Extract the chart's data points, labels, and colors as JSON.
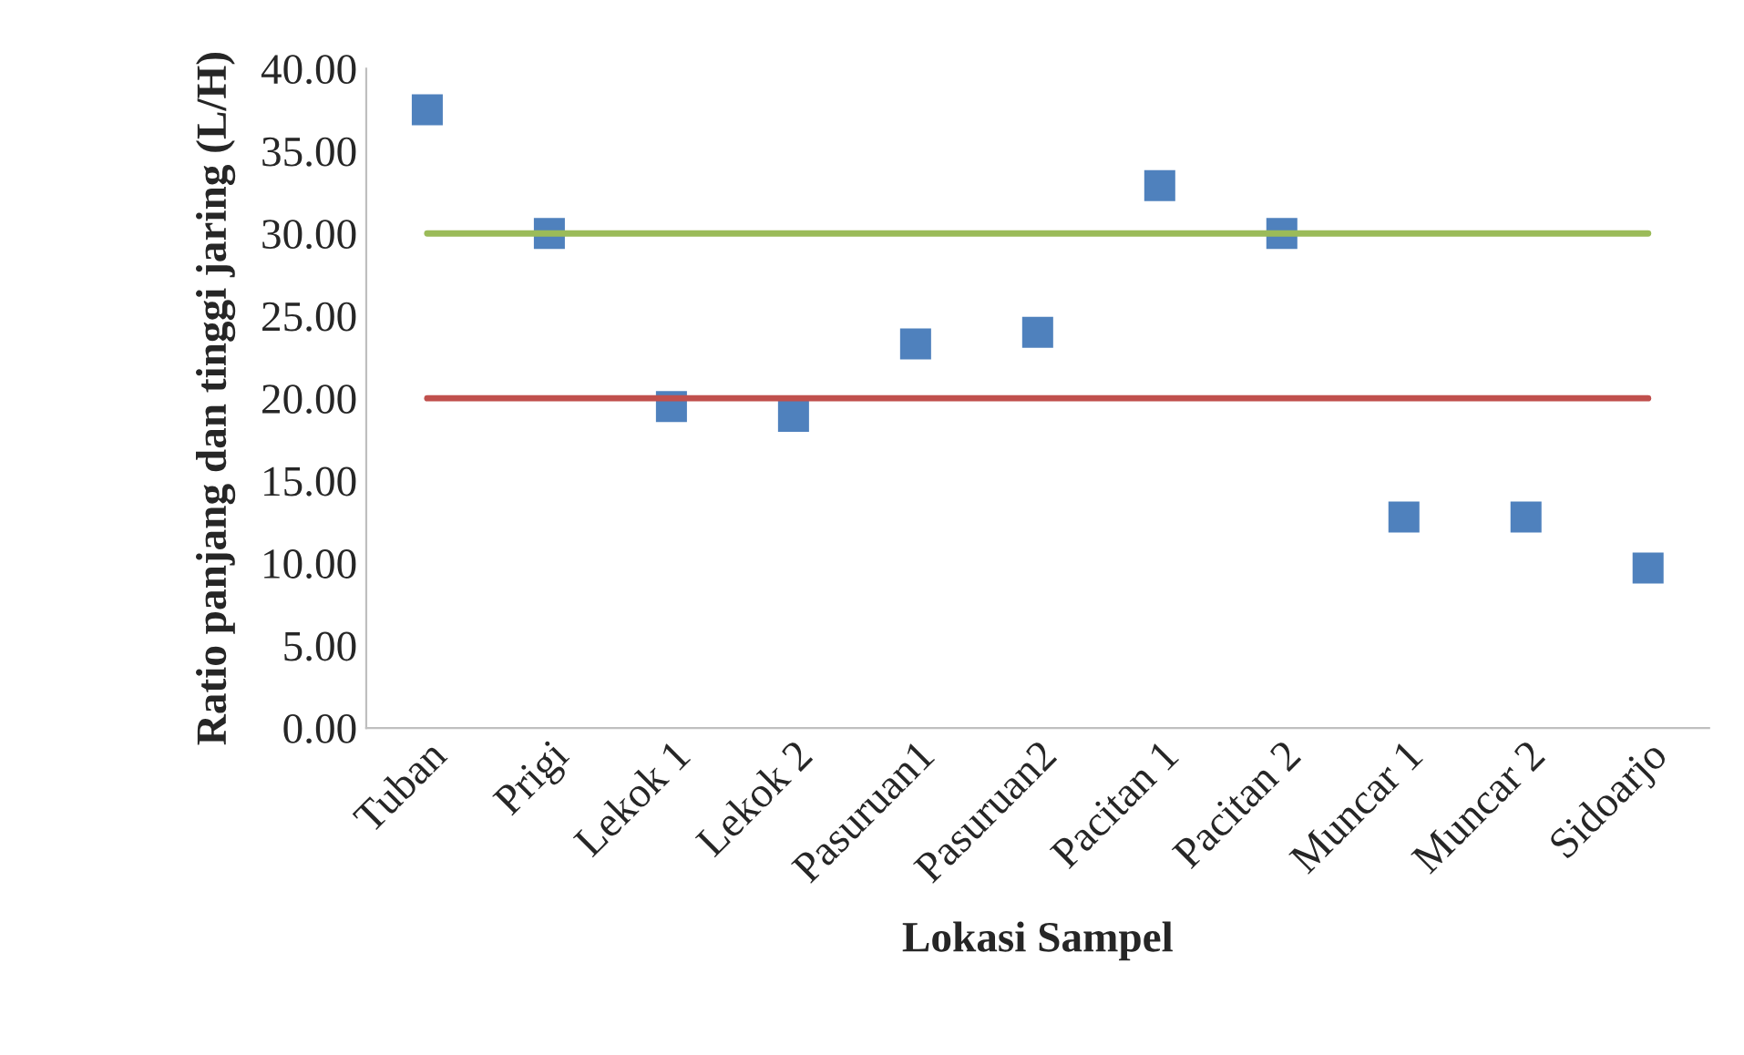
{
  "chart_data": {
    "type": "scatter",
    "xlabel": "Lokasi Sampel",
    "ylabel": "Ratio panjang dan tinggi jaring (L/H)",
    "categories": [
      "Tuban",
      "Prigi",
      "Lekok 1",
      "Lekok 2",
      "Pasuruan1",
      "Pasuruan2",
      "Pacitan 1",
      "Pacitan 2",
      "Muncar 1",
      "Muncar 2",
      "Sidoarjo"
    ],
    "series": [
      {
        "type": "line",
        "color": "#9bbb59",
        "marker": "none",
        "values": [
          30,
          30,
          30,
          30,
          30,
          30,
          30,
          30,
          30,
          30,
          30
        ]
      },
      {
        "type": "line",
        "color": "#c0504d",
        "marker": "none",
        "values": [
          20,
          20,
          20,
          20,
          20,
          20,
          20,
          20,
          20,
          20,
          20
        ]
      },
      {
        "color": "#4f81bd",
        "marker": "square",
        "values": [
          37.5,
          30.0,
          19.5,
          18.9,
          23.3,
          24.0,
          32.9,
          30.0,
          12.8,
          12.8,
          9.7
        ]
      }
    ],
    "ylim": [
      0,
      40
    ],
    "yticks": [
      {
        "value": 0,
        "label": "0.00"
      },
      {
        "value": 5,
        "label": "5.00"
      },
      {
        "value": 10,
        "label": "10.00"
      },
      {
        "value": 15,
        "label": "15.00"
      },
      {
        "value": 20,
        "label": "20.00"
      },
      {
        "value": 25,
        "label": "25.00"
      },
      {
        "value": 30,
        "label": "30.00"
      },
      {
        "value": 35,
        "label": "35.00"
      },
      {
        "value": 40,
        "label": "40.00"
      }
    ],
    "grid": false,
    "legend": false
  }
}
